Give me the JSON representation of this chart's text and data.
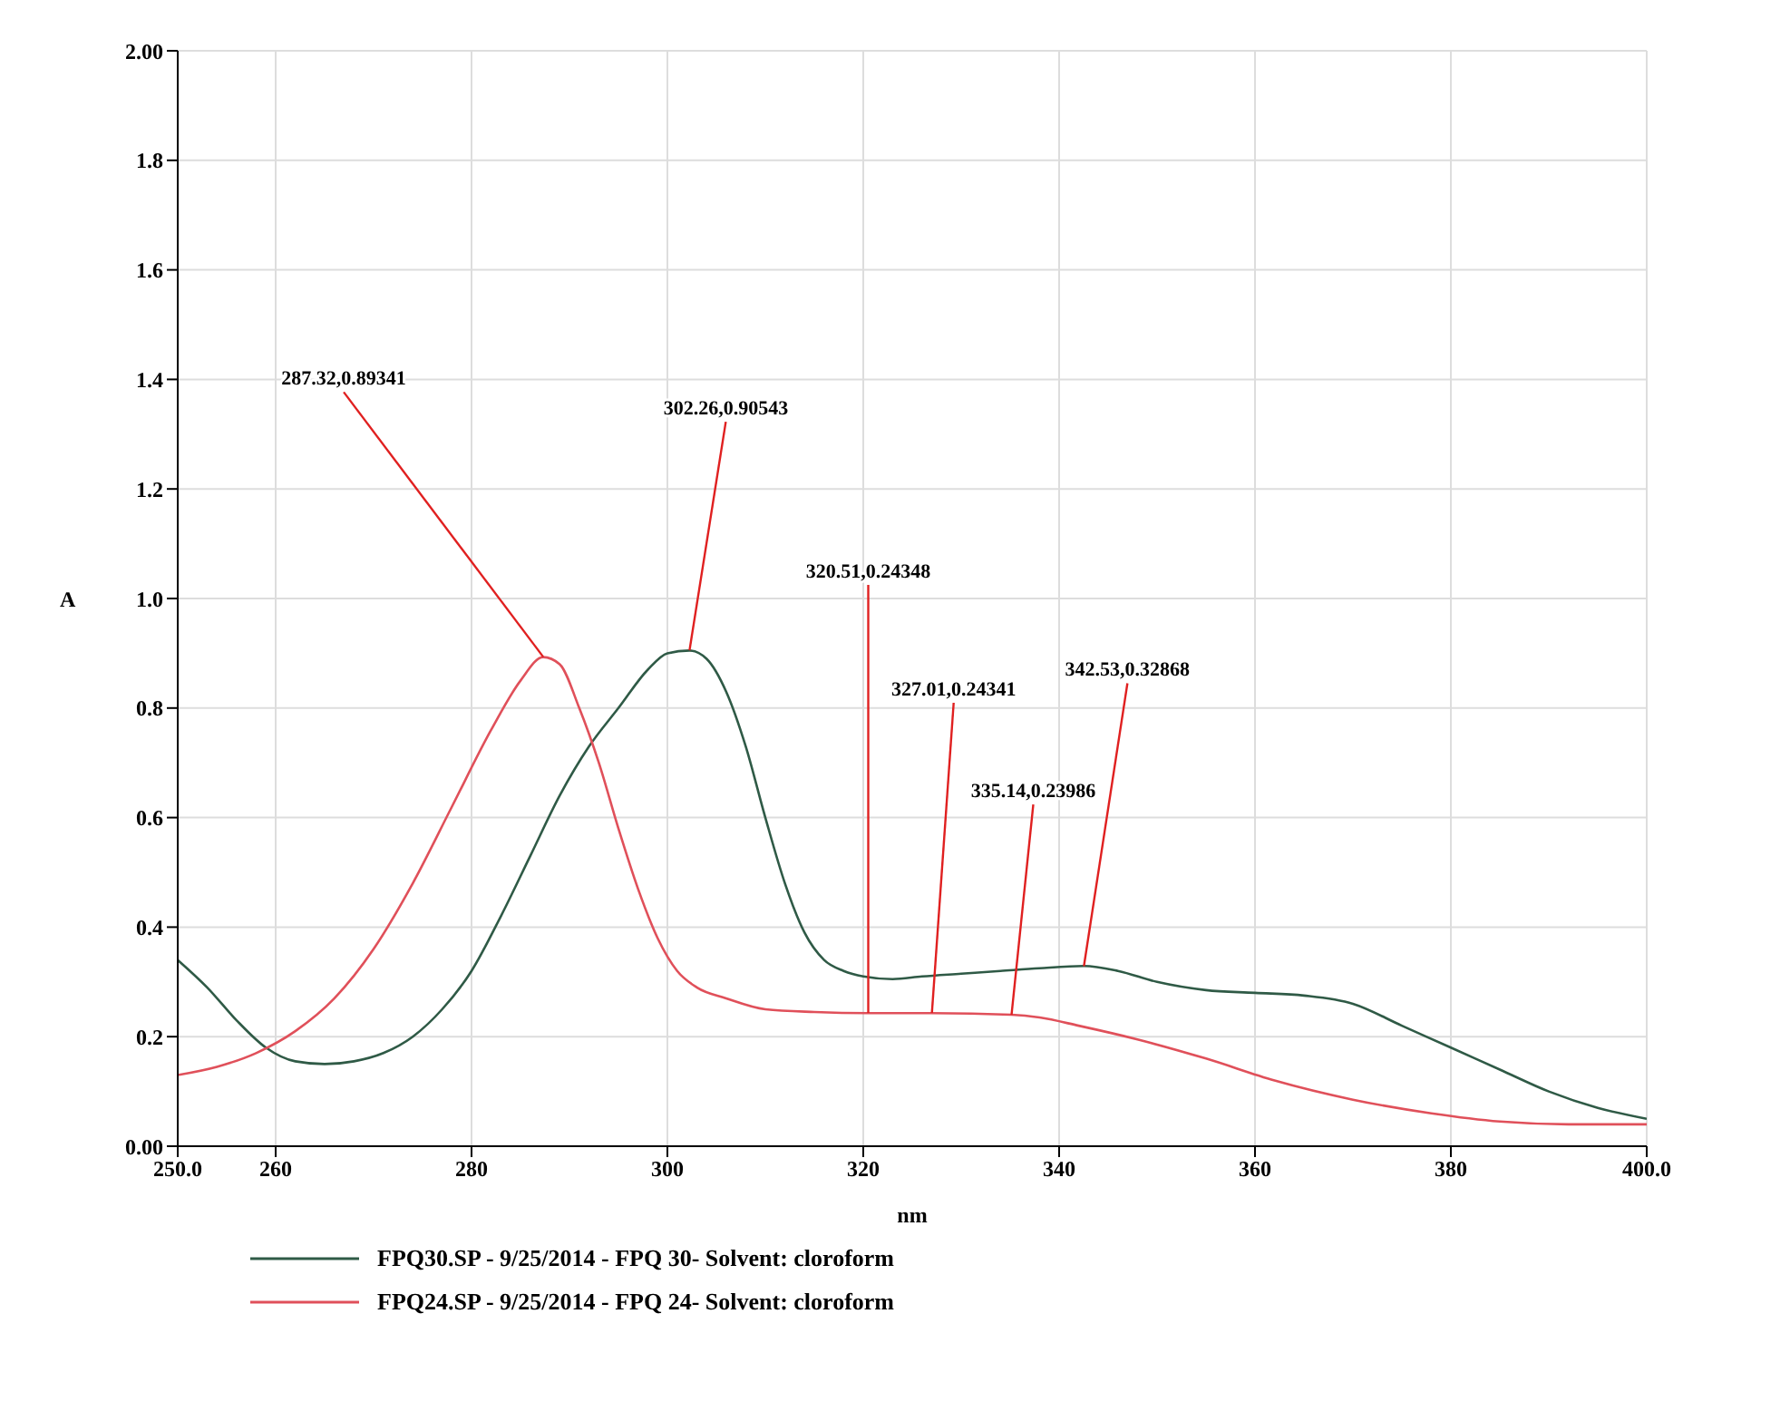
{
  "chart_data": {
    "type": "line",
    "xlabel": "nm",
    "ylabel": "A",
    "xlim": [
      250,
      400
    ],
    "xticks": [
      {
        "value": 250,
        "label": "250.0"
      },
      260,
      280,
      300,
      320,
      340,
      360,
      380,
      {
        "value": 400,
        "label": "400.0"
      }
    ],
    "ylim": [
      0,
      2
    ],
    "yticks": [
      {
        "value": 0,
        "label": "0.00"
      },
      0.2,
      0.4,
      0.6,
      0.8,
      {
        "value": 1,
        "label": "1.0"
      },
      1.2,
      1.4,
      1.6,
      1.8,
      {
        "value": 2,
        "label": "2.00"
      }
    ],
    "grid": true,
    "legend": "bottom",
    "line_style": "solid",
    "marker": "none",
    "series": [
      {
        "name": "FPQ30.SP - 9/25/2014 - FPQ 30- Solvent: cloroform",
        "color": "#2f5a46",
        "x": [
          250,
          253,
          256,
          259,
          262,
          265,
          268,
          271,
          274,
          277,
          280,
          283,
          286,
          289,
          292,
          295,
          298,
          300,
          302.26,
          304,
          306,
          308,
          310,
          312,
          314,
          316,
          318,
          320,
          323,
          326,
          330,
          334,
          338,
          342.53,
          346,
          350,
          355,
          360,
          365,
          370,
          375,
          380,
          385,
          390,
          395,
          400
        ],
        "values": [
          0.34,
          0.29,
          0.23,
          0.18,
          0.155,
          0.15,
          0.155,
          0.17,
          0.2,
          0.25,
          0.32,
          0.42,
          0.53,
          0.64,
          0.73,
          0.8,
          0.87,
          0.9,
          0.905,
          0.89,
          0.83,
          0.73,
          0.6,
          0.48,
          0.39,
          0.34,
          0.32,
          0.31,
          0.305,
          0.31,
          0.315,
          0.32,
          0.325,
          0.329,
          0.32,
          0.3,
          0.285,
          0.28,
          0.275,
          0.26,
          0.22,
          0.18,
          0.14,
          0.1,
          0.07,
          0.05
        ]
      },
      {
        "name": "FPQ24.SP - 9/25/2014 - FPQ 24- Solvent: cloroform",
        "color": "#e0505a",
        "x": [
          250,
          254,
          258,
          262,
          266,
          270,
          274,
          278,
          282,
          285,
          287.32,
          289,
          291,
          293,
          295,
          297,
          299,
          301,
          303,
          306,
          310,
          315,
          320.51,
          327.01,
          335.14,
          338,
          342,
          348,
          355,
          362,
          370,
          378,
          385,
          392,
          400
        ],
        "values": [
          0.13,
          0.145,
          0.17,
          0.21,
          0.27,
          0.36,
          0.48,
          0.62,
          0.76,
          0.85,
          0.893,
          0.88,
          0.8,
          0.7,
          0.58,
          0.47,
          0.38,
          0.32,
          0.29,
          0.27,
          0.25,
          0.245,
          0.243,
          0.243,
          0.24,
          0.235,
          0.22,
          0.195,
          0.16,
          0.12,
          0.085,
          0.06,
          0.045,
          0.04,
          0.04
        ]
      }
    ],
    "annotations": [
      {
        "text": "287.32,0.89341",
        "x": 287.32,
        "y": 0.89341
      },
      {
        "text": "302.26,0.90543",
        "x": 302.26,
        "y": 0.90543
      },
      {
        "text": "320.51,0.24348",
        "x": 320.51,
        "y": 0.24348
      },
      {
        "text": "327.01,0.24341",
        "x": 327.01,
        "y": 0.24341
      },
      {
        "text": "335.14,0.23986",
        "x": 335.14,
        "y": 0.23986
      },
      {
        "text": "342.53,0.32868",
        "x": 342.53,
        "y": 0.32868
      }
    ]
  }
}
